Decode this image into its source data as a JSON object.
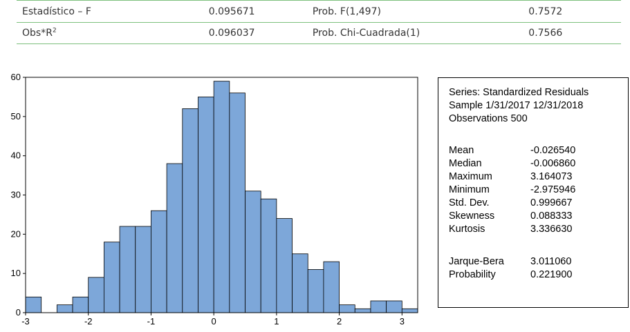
{
  "test_table": {
    "rows": [
      {
        "label": "Estadístico – F",
        "value": "0.095671",
        "prob_label": "Prob. F(1,497)",
        "prob_value": "0.7572"
      },
      {
        "label": "Obs*R",
        "label_sup": "2",
        "value": "0.096037",
        "prob_label": "Prob. Chi-Cuadrada(1)",
        "prob_value": "0.7566"
      }
    ]
  },
  "chart_data": {
    "type": "bar",
    "title": "",
    "xlabel": "",
    "ylabel": "",
    "bin_width": 0.25,
    "bin_starts": [
      -3.0,
      -2.75,
      -2.5,
      -2.25,
      -2.0,
      -1.75,
      -1.5,
      -1.25,
      -1.0,
      -0.75,
      -0.5,
      -0.25,
      0.0,
      0.25,
      0.5,
      0.75,
      1.0,
      1.25,
      1.5,
      1.75,
      2.0,
      2.25,
      2.5,
      2.75,
      3.0
    ],
    "values": [
      4,
      0,
      2,
      4,
      9,
      18,
      22,
      22,
      26,
      38,
      52,
      55,
      59,
      56,
      31,
      29,
      24,
      15,
      11,
      13,
      2,
      1,
      3,
      3,
      1
    ],
    "xlim": [
      -3.0,
      3.25
    ],
    "ylim": [
      0,
      60
    ],
    "x_ticks": [
      "-3",
      "-2",
      "-1",
      "0",
      "1",
      "2",
      "3"
    ],
    "y_ticks": [
      "0",
      "10",
      "20",
      "30",
      "40",
      "50",
      "60"
    ],
    "bar_color": "#7da7d9",
    "grid": false
  },
  "stats": {
    "series": "Series: Standardized Residuals",
    "sample": "Sample 1/31/2017 12/31/2018",
    "observations": "Observations 500",
    "rows": [
      {
        "label": "Mean",
        "value": "-0.026540"
      },
      {
        "label": "Median",
        "value": "-0.006860"
      },
      {
        "label": "Maximum",
        "value": "3.164073"
      },
      {
        "label": "Minimum",
        "value": "-2.975946"
      },
      {
        "label": "Std. Dev.",
        "value": "0.999667"
      },
      {
        "label": "Skewness",
        "value": "0.088333"
      },
      {
        "label": "Kurtosis",
        "value": "3.336630"
      },
      {
        "label": "Jarque-Bera",
        "value": "3.011060"
      },
      {
        "label": "Probability",
        "value": "0.221900"
      }
    ]
  }
}
